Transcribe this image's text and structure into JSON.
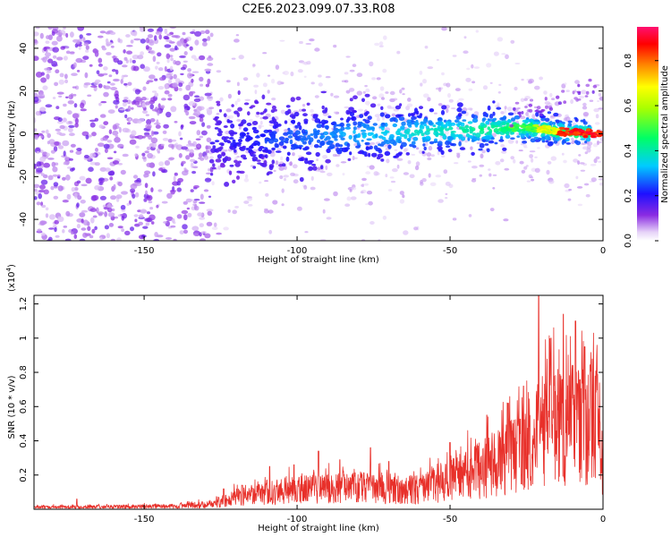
{
  "figure": {
    "title": "C2E6.2023.099.07.33.R08"
  },
  "colors": {
    "snr_line": "#e8302a",
    "frame": "#000000",
    "background": "#ffffff"
  },
  "chart_data": [
    {
      "type": "heatmap",
      "title": "",
      "xlabel": "Height of straight line (km)",
      "ylabel": "Frequency (Hz)",
      "xlim": [
        -186,
        0
      ],
      "ylim": [
        -50,
        50
      ],
      "x_ticks": [
        -150,
        -100,
        -50,
        0
      ],
      "y_ticks": [
        -40,
        -20,
        0,
        20,
        40
      ],
      "colorbar": {
        "label": "Normalized spectral amplitude",
        "range": [
          0,
          0.95
        ],
        "ticks": [
          0.0,
          0.2,
          0.4,
          0.6,
          0.8
        ],
        "colormap": "rainbow (white-violet-blue-cyan-green-yellow-orange-red-magenta)"
      },
      "features": {
        "ridge_frequency_hz": [
          {
            "x": -120,
            "y": -2
          },
          {
            "x": -100,
            "y": -2
          },
          {
            "x": -80,
            "y": 0
          },
          {
            "x": -60,
            "y": 1
          },
          {
            "x": -40,
            "y": 2
          },
          {
            "x": -25,
            "y": 3
          },
          {
            "x": -15,
            "y": 1
          },
          {
            "x": 0,
            "y": 0
          }
        ],
        "peak_amplitude_region_km": [
          -15,
          0
        ],
        "noise_region_km": [
          -186,
          -128
        ]
      }
    },
    {
      "type": "line",
      "title": "",
      "xlabel": "Height of straight line (km)",
      "ylabel": "SNR (10 * v/v)",
      "y_multiplier_label": "(x10",
      "y_multiplier_exp": "4",
      "y_multiplier_close": ")",
      "xlim": [
        -186,
        0
      ],
      "ylim": [
        0,
        1.25
      ],
      "x_ticks": [
        -150,
        -100,
        -50,
        0
      ],
      "y_ticks": [
        0.2,
        0.4,
        0.6,
        0.8,
        1.0,
        1.2
      ],
      "series": [
        {
          "name": "",
          "envelope": [
            {
              "x": -186,
              "y": 0.02
            },
            {
              "x": -140,
              "y": 0.03
            },
            {
              "x": -128,
              "y": 0.05
            },
            {
              "x": -120,
              "y": 0.12
            },
            {
              "x": -100,
              "y": 0.2
            },
            {
              "x": -80,
              "y": 0.22
            },
            {
              "x": -60,
              "y": 0.2
            },
            {
              "x": -50,
              "y": 0.3
            },
            {
              "x": -40,
              "y": 0.4
            },
            {
              "x": -30,
              "y": 0.55
            },
            {
              "x": -20,
              "y": 0.8
            },
            {
              "x": -10,
              "y": 0.85
            },
            {
              "x": -2,
              "y": 0.85
            },
            {
              "x": 0,
              "y": 0.4
            }
          ],
          "peaks": [
            {
              "x": -172,
              "y": 0.06
            },
            {
              "x": -124,
              "y": 0.12
            },
            {
              "x": -118,
              "y": 0.14
            },
            {
              "x": -109,
              "y": 0.25
            },
            {
              "x": -101,
              "y": 0.26
            },
            {
              "x": -93,
              "y": 0.34
            },
            {
              "x": -86,
              "y": 0.29
            },
            {
              "x": -76,
              "y": 0.36
            },
            {
              "x": -70,
              "y": 0.28
            },
            {
              "x": -50,
              "y": 0.39
            },
            {
              "x": -38,
              "y": 0.55
            },
            {
              "x": -31,
              "y": 0.62
            },
            {
              "x": -26,
              "y": 0.72
            },
            {
              "x": -21,
              "y": 1.25
            },
            {
              "x": -17,
              "y": 1.0
            },
            {
              "x": -13,
              "y": 1.14
            },
            {
              "x": -9,
              "y": 1.1
            },
            {
              "x": -6,
              "y": 0.95
            },
            {
              "x": -2,
              "y": 0.9
            }
          ]
        }
      ]
    }
  ]
}
